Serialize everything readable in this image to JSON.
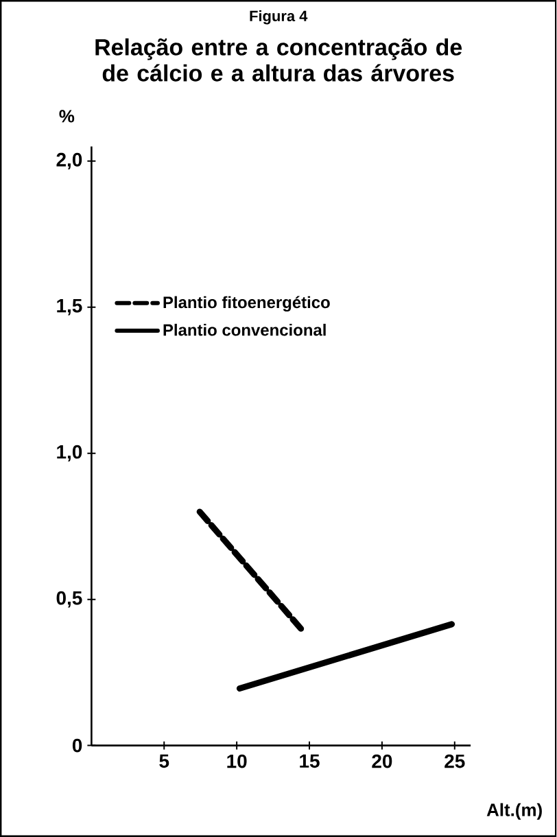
{
  "chart_data": {
    "type": "line",
    "title": "Figura 4",
    "subtitle": "Relação entre a concentração de de cálcio e a altura das árvores",
    "ylabel": "%",
    "xlabel": "Alt.(m)",
    "xlim": [
      0,
      26.1
    ],
    "ylim": [
      0,
      2.05
    ],
    "xticks": [
      5,
      10,
      15,
      20,
      25
    ],
    "yticks": [
      {
        "value": 0,
        "label": "0"
      },
      {
        "value": 0.5,
        "label": "0,5"
      },
      {
        "value": 1.0,
        "label": "1,0"
      },
      {
        "value": 1.5,
        "label": "1,5"
      },
      {
        "value": 2.0,
        "label": "2,0"
      }
    ],
    "legend": "top left",
    "grid": false,
    "series": [
      {
        "name": "Plantio fitoenergético",
        "color": "#000000",
        "line_style": "dashed",
        "x": [
          7.45,
          14.5
        ],
        "values": [
          0.8,
          0.395
        ]
      },
      {
        "name": "Plantio convencional",
        "color": "#000000",
        "line_style": "solid",
        "x": [
          10.2,
          24.8
        ],
        "values": [
          0.195,
          0.415
        ]
      }
    ]
  }
}
